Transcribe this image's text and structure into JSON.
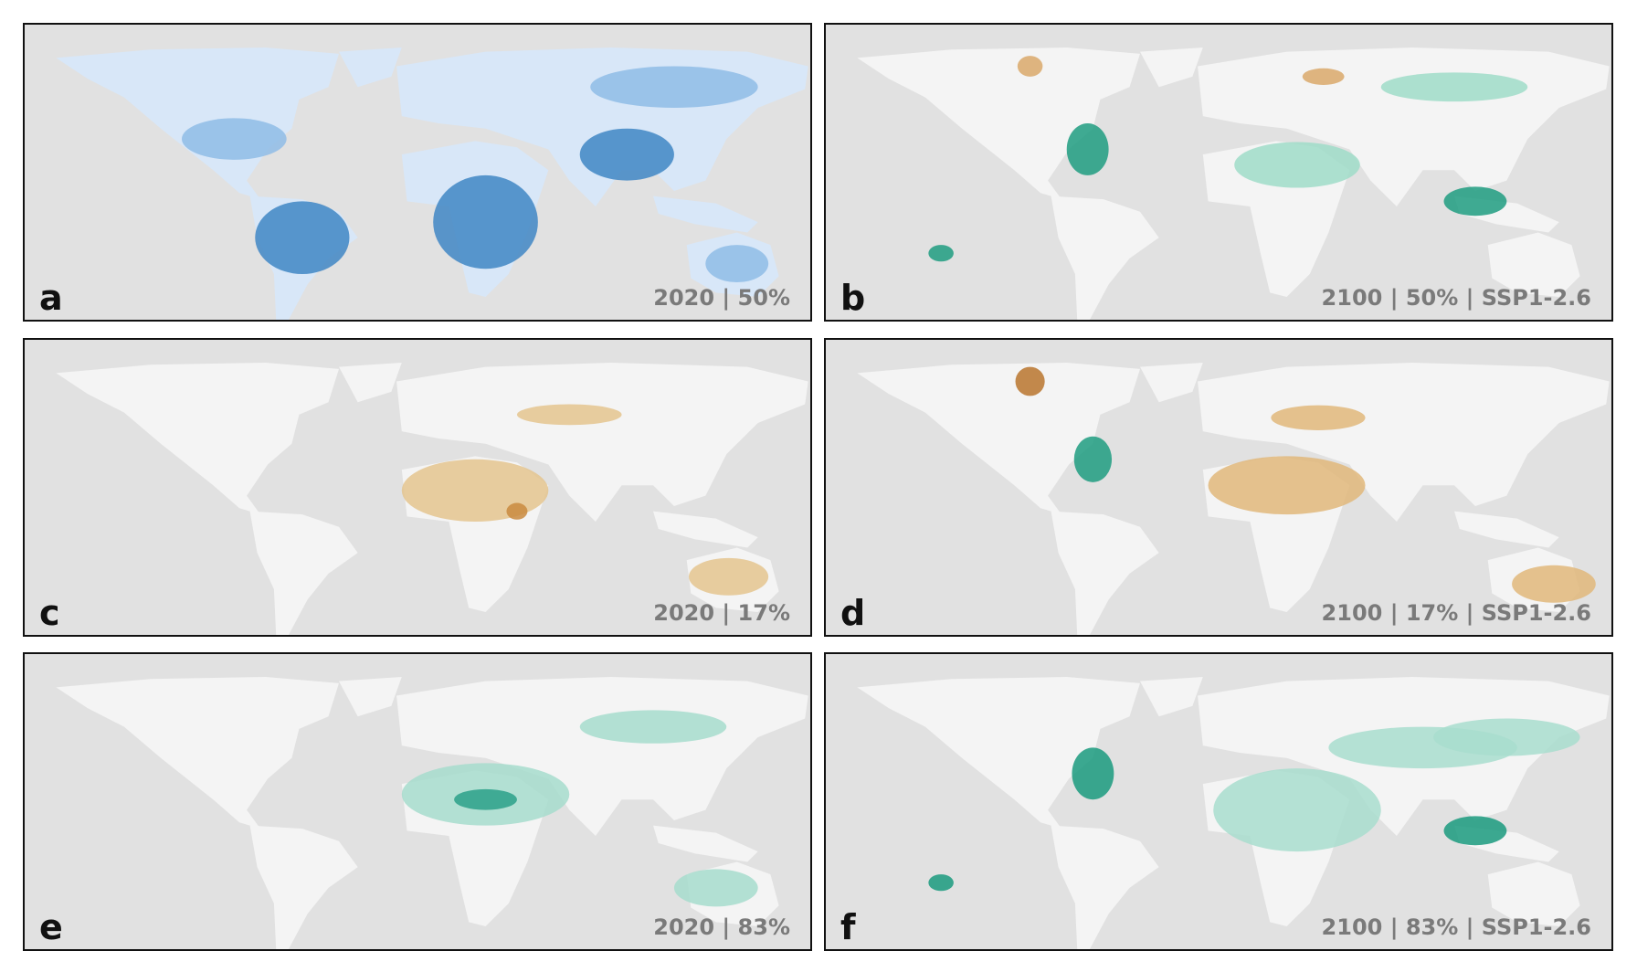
{
  "panels": [
    {
      "letter": "a",
      "caption": "2020 | 50%"
    },
    {
      "letter": "b",
      "caption": "2100 | 50% | SSP1-2.6"
    },
    {
      "letter": "c",
      "caption": "2020 | 17%"
    },
    {
      "letter": "d",
      "caption": "2100 | 17% | SSP1-2.6"
    },
    {
      "letter": "e",
      "caption": "2020 | 83%"
    },
    {
      "letter": "f",
      "caption": "2100 | 83% | SSP1-2.6"
    }
  ]
}
